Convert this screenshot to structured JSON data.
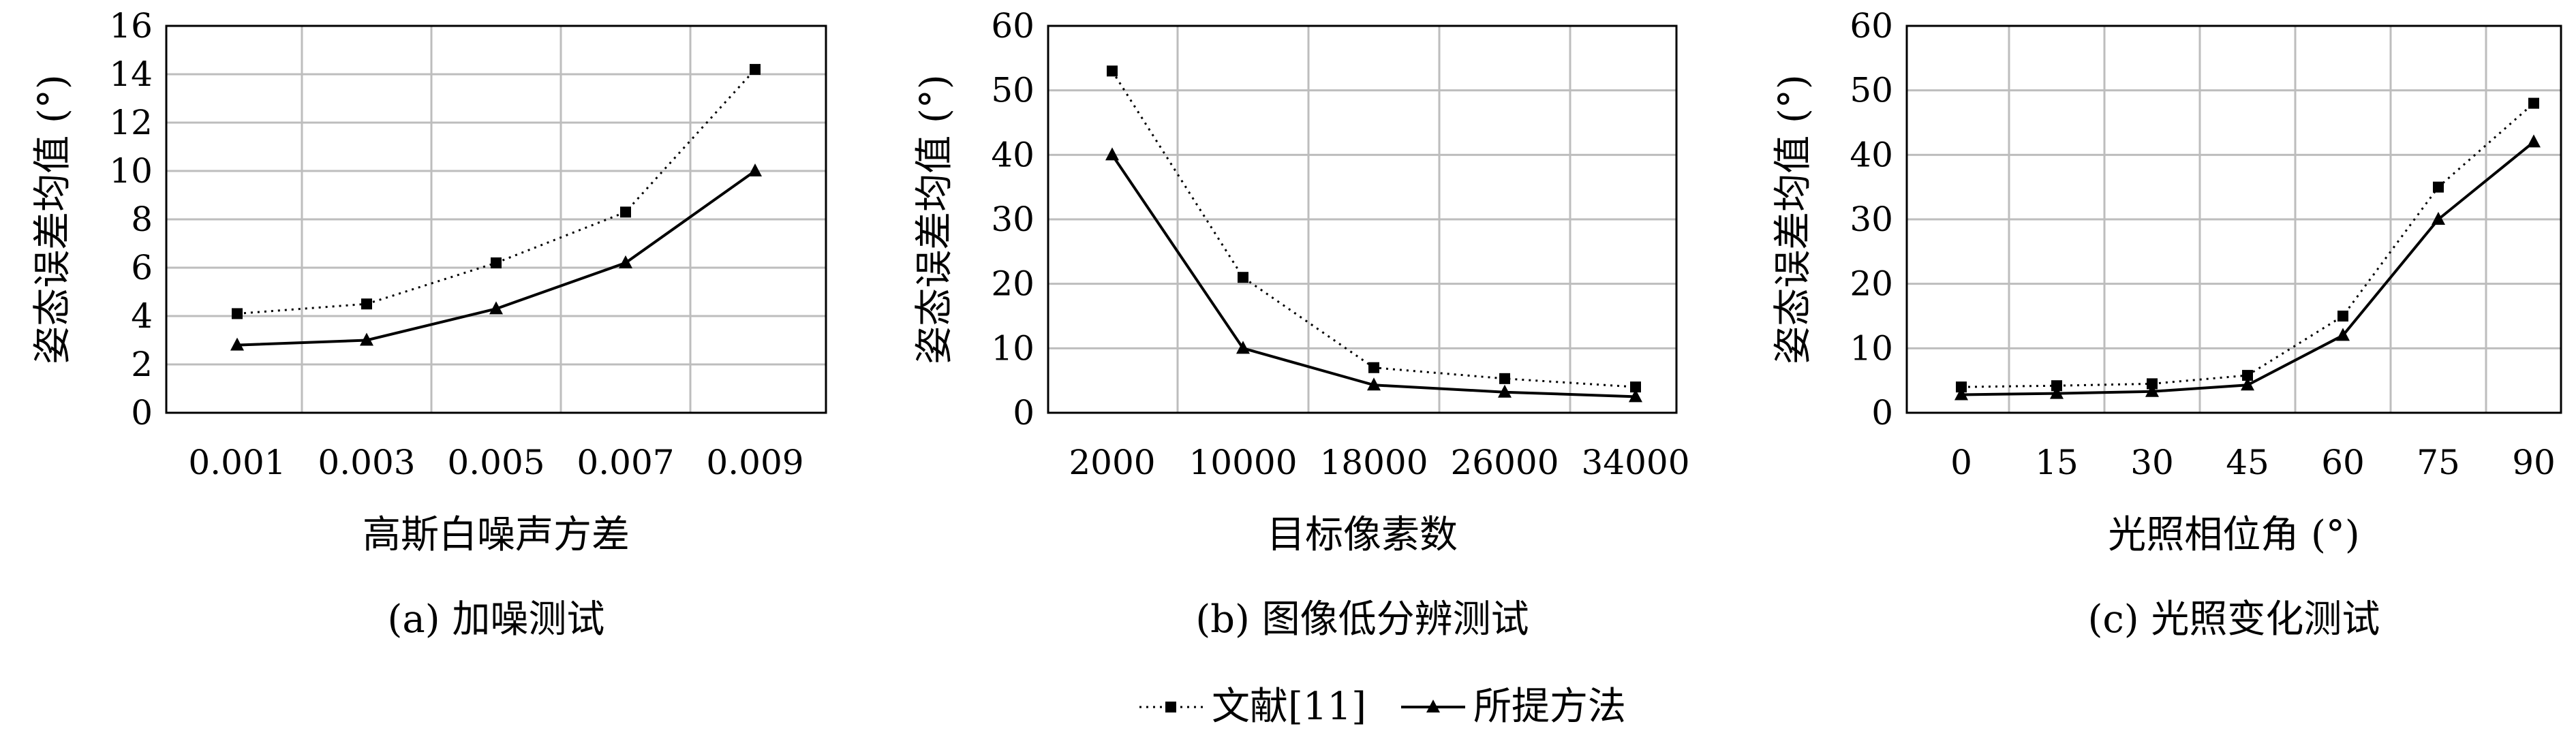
{
  "chart_data": [
    {
      "type": "line",
      "caption": "(a) 加噪测试",
      "xlabel": "高斯白噪声方差",
      "ylabel": "姿态误差均值 (°)",
      "categories": [
        "0.001",
        "0.003",
        "0.005",
        "0.007",
        "0.009"
      ],
      "ylim": [
        0,
        16
      ],
      "yticks": [
        0,
        2,
        4,
        6,
        8,
        10,
        12,
        14,
        16
      ],
      "grid": true,
      "series": [
        {
          "name": "文献[11]",
          "style": "dotted",
          "marker": "square",
          "values": [
            4.1,
            4.5,
            6.2,
            8.3,
            14.2
          ]
        },
        {
          "name": "所提方法",
          "style": "solid",
          "marker": "triangle",
          "values": [
            2.8,
            3.0,
            4.3,
            6.2,
            10.0
          ]
        }
      ]
    },
    {
      "type": "line",
      "caption": "(b) 图像低分辨测试",
      "xlabel": "目标像素数",
      "ylabel": "姿态误差均值 (°)",
      "categories": [
        "2000",
        "10000",
        "18000",
        "26000",
        "34000"
      ],
      "ylim": [
        0,
        60
      ],
      "yticks": [
        0,
        10,
        20,
        30,
        40,
        50,
        60
      ],
      "grid": true,
      "series": [
        {
          "name": "文献[11]",
          "style": "dotted",
          "marker": "square",
          "values": [
            53,
            21,
            7,
            5.3,
            4
          ]
        },
        {
          "name": "所提方法",
          "style": "solid",
          "marker": "triangle",
          "values": [
            40,
            10,
            4.3,
            3.2,
            2.5
          ]
        }
      ]
    },
    {
      "type": "line",
      "caption": "(c) 光照变化测试",
      "xlabel": "光照相位角 (°)",
      "ylabel": "姿态误差均值 (°)",
      "categories": [
        "0",
        "15",
        "30",
        "45",
        "60",
        "75",
        "90"
      ],
      "ylim": [
        0,
        60
      ],
      "yticks": [
        0,
        10,
        20,
        30,
        40,
        50,
        60
      ],
      "grid": true,
      "series": [
        {
          "name": "文献[11]",
          "style": "dotted",
          "marker": "square",
          "values": [
            4,
            4.2,
            4.5,
            5.8,
            15,
            35,
            48
          ]
        },
        {
          "name": "所提方法",
          "style": "solid",
          "marker": "triangle",
          "values": [
            2.8,
            3.0,
            3.3,
            4.3,
            12,
            30,
            42
          ]
        }
      ]
    }
  ],
  "legend": {
    "placement": "bottom-center",
    "items": [
      {
        "label": "文献[11]",
        "style": "dotted",
        "marker": "square"
      },
      {
        "label": "所提方法",
        "style": "solid",
        "marker": "triangle"
      }
    ]
  }
}
